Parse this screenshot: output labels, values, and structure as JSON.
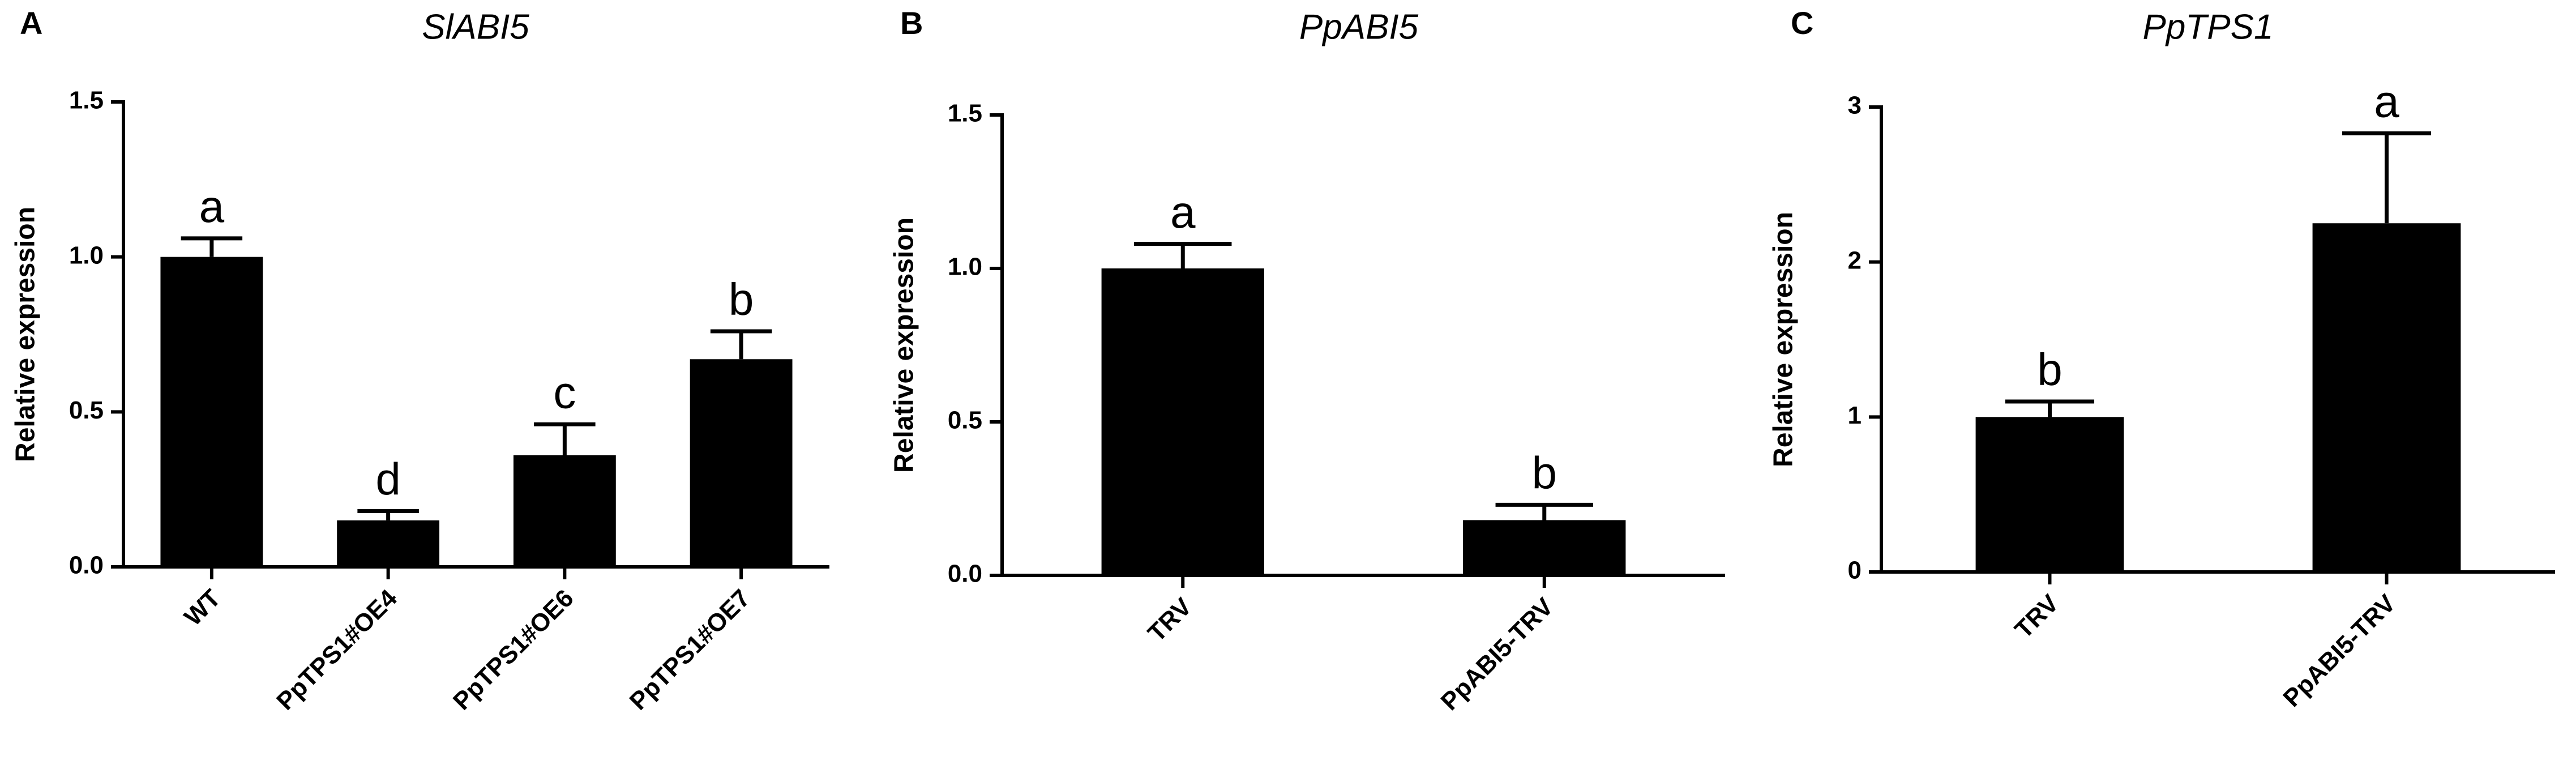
{
  "chart_data": [
    {
      "type": "bar",
      "label": "A",
      "title": "SlABI5",
      "ylabel": "Relative expression",
      "categories": [
        "WT",
        "PpTPS1#OE4",
        "PpTPS1#OE6",
        "PpTPS1#OE7"
      ],
      "values": [
        1.0,
        0.15,
        0.36,
        0.67
      ],
      "errors": [
        0.06,
        0.03,
        0.1,
        0.09
      ],
      "letters": [
        "a",
        "d",
        "c",
        "b"
      ],
      "color": "#000000",
      "ylim": [
        0,
        1.5
      ],
      "yticks": [
        {
          "value": 0,
          "label": "0.0"
        },
        {
          "value": 0.5,
          "label": "0.5"
        },
        {
          "value": 1,
          "label": "1.0"
        },
        {
          "value": 1.5,
          "label": "1.5"
        }
      ]
    },
    {
      "type": "bar",
      "label": "B",
      "title": "PpABI5",
      "ylabel": "Relative expression",
      "categories": [
        "TRV",
        "PpABI5-TRV"
      ],
      "values": [
        1.0,
        0.18
      ],
      "errors": [
        0.08,
        0.05
      ],
      "letters": [
        "a",
        "b"
      ],
      "color": "#000000",
      "ylim": [
        0,
        1.5
      ],
      "yticks": [
        {
          "value": 0,
          "label": "0.0"
        },
        {
          "value": 0.5,
          "label": "0.5"
        },
        {
          "value": 1,
          "label": "1.0"
        },
        {
          "value": 1.5,
          "label": "1.5"
        }
      ]
    },
    {
      "type": "bar",
      "label": "C",
      "title": "PpTPS1",
      "ylabel": "Relative expression",
      "categories": [
        "TRV",
        "PpABI5-TRV"
      ],
      "values": [
        1.0,
        2.25
      ],
      "errors": [
        0.1,
        0.58
      ],
      "letters": [
        "b",
        "a"
      ],
      "color": "#000000",
      "ylim": [
        0,
        3
      ],
      "yticks": [
        0,
        1,
        2,
        3
      ]
    }
  ]
}
